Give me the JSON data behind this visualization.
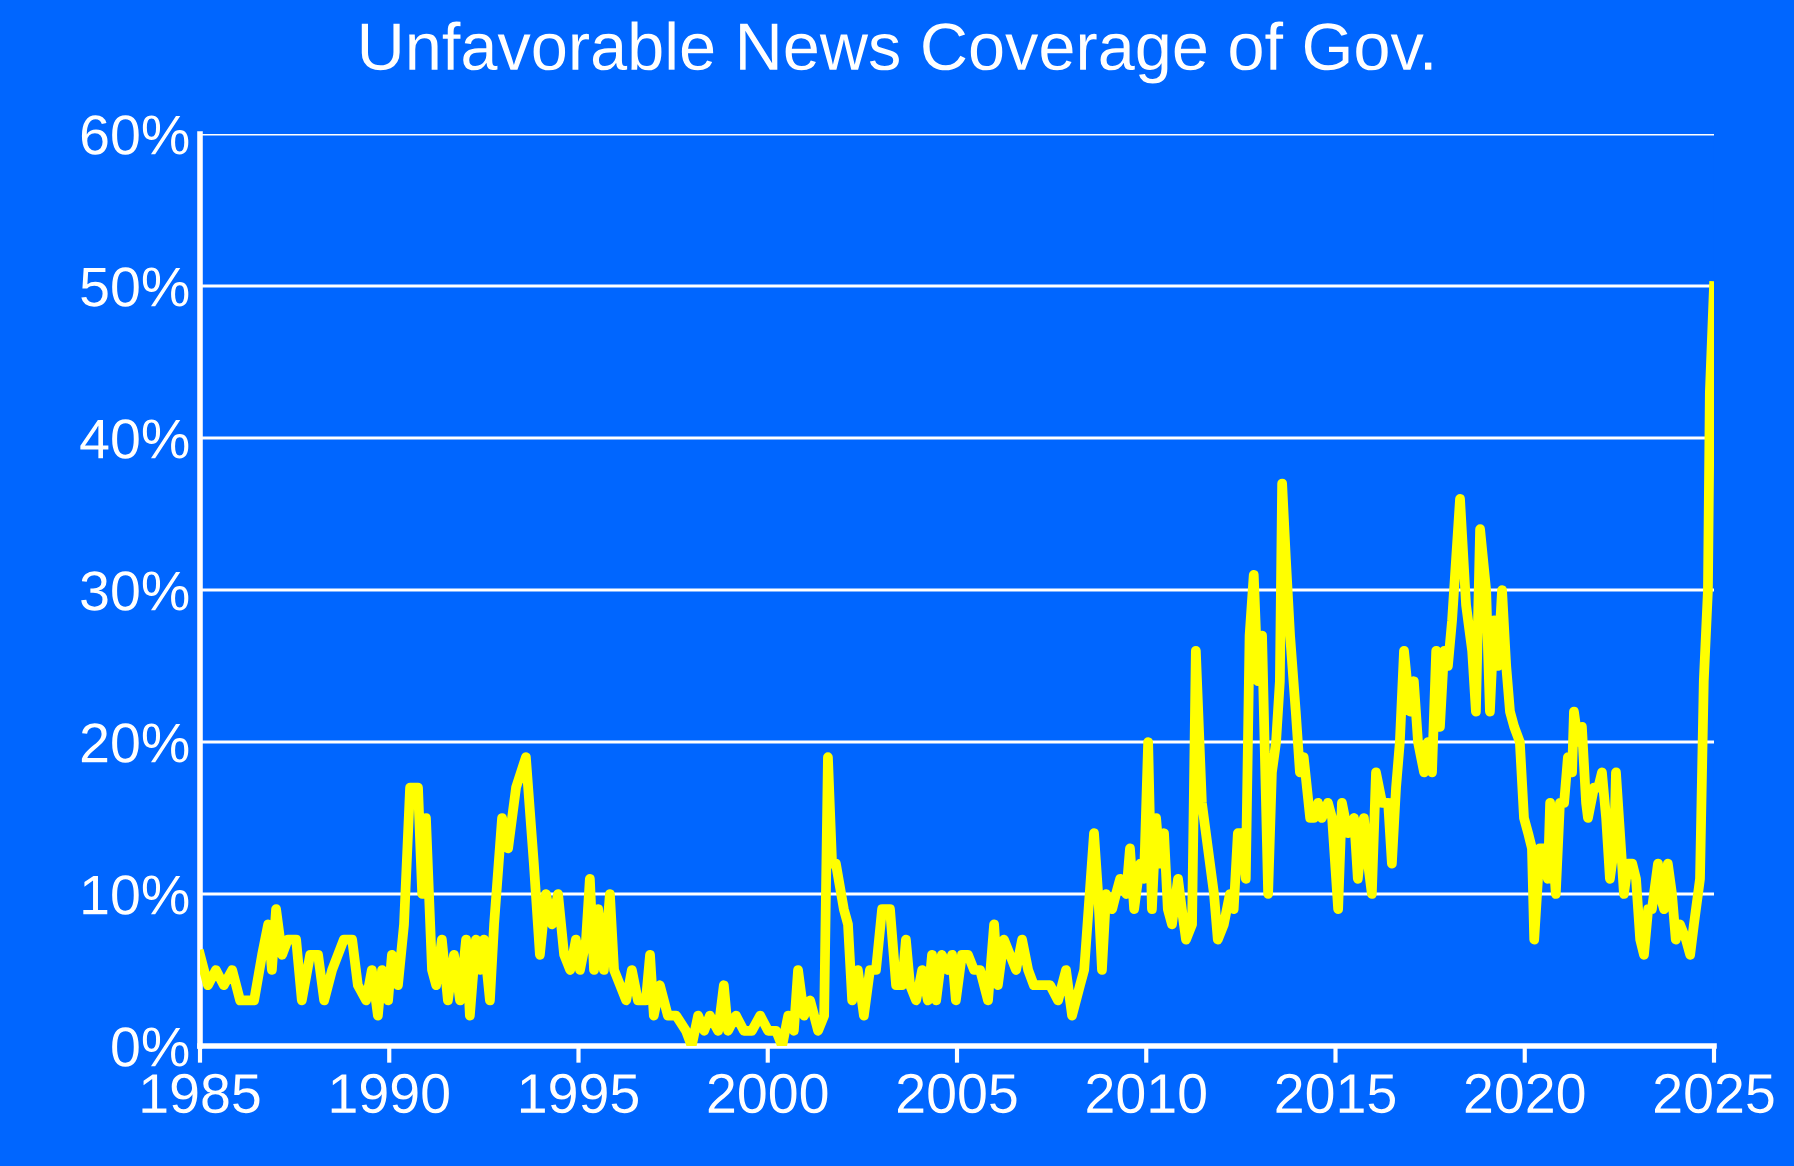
{
  "chart_data": {
    "type": "line",
    "title": "Unfavorable News Coverage of Gov.",
    "xlim": [
      1985,
      2025
    ],
    "xticks": [
      1985,
      1990,
      1995,
      2000,
      2005,
      2010,
      2015,
      2020,
      2025
    ],
    "ylim": [
      0,
      60
    ],
    "yticks": [
      {
        "value": 0,
        "label": "0%"
      },
      {
        "value": 10,
        "label": "10%"
      },
      {
        "value": 20,
        "label": "20%"
      },
      {
        "value": 30,
        "label": "30%"
      },
      {
        "value": 40,
        "label": "40%"
      },
      {
        "value": 50,
        "label": "50%"
      },
      {
        "value": 60,
        "label": "60%"
      }
    ],
    "grid": "y",
    "marker": "none",
    "line_style": "solid",
    "series": [
      {
        "color": "#ffff00",
        "x": [
          1985.0,
          1985.21,
          1985.42,
          1985.63,
          1985.85,
          1986.06,
          1986.43,
          1986.64,
          1986.8,
          1986.9,
          1987.01,
          1987.17,
          1987.32,
          1987.54,
          1987.69,
          1987.91,
          1988.12,
          1988.28,
          1988.49,
          1988.8,
          1989.02,
          1989.17,
          1989.39,
          1989.54,
          1989.7,
          1989.81,
          1989.97,
          1990.07,
          1990.23,
          1990.39,
          1990.55,
          1990.76,
          1990.87,
          1990.97,
          1991.13,
          1991.24,
          1991.39,
          1991.55,
          1991.71,
          1991.87,
          1992.03,
          1992.13,
          1992.29,
          1992.4,
          1992.5,
          1992.66,
          1992.77,
          1992.98,
          1993.14,
          1993.35,
          1993.61,
          1993.82,
          1993.98,
          1994.14,
          1994.3,
          1994.46,
          1994.62,
          1994.78,
          1994.93,
          1995.04,
          1995.2,
          1995.3,
          1995.41,
          1995.52,
          1995.67,
          1995.83,
          1995.94,
          1996.1,
          1996.26,
          1996.41,
          1996.57,
          1996.78,
          1996.89,
          1996.99,
          1997.15,
          1997.36,
          1997.58,
          1997.84,
          1997.99,
          1998.16,
          1998.32,
          1998.47,
          1998.69,
          1998.84,
          1998.95,
          1999.16,
          1999.37,
          1999.58,
          1999.8,
          2000.01,
          2000.22,
          2000.38,
          2000.54,
          2000.69,
          2000.8,
          2000.96,
          2001.12,
          2001.33,
          2001.49,
          2001.59,
          2001.7,
          2001.8,
          2002.01,
          2002.12,
          2002.23,
          2002.38,
          2002.54,
          2002.7,
          2002.86,
          2003.02,
          2003.23,
          2003.39,
          2003.55,
          2003.65,
          2003.76,
          2003.92,
          2004.08,
          2004.23,
          2004.34,
          2004.45,
          2004.6,
          2004.76,
          2004.87,
          2004.97,
          2005.13,
          2005.29,
          2005.45,
          2005.61,
          2005.82,
          2005.98,
          2006.08,
          2006.24,
          2006.4,
          2006.56,
          2006.72,
          2006.88,
          2007.03,
          2007.25,
          2007.46,
          2007.67,
          2007.88,
          2008.04,
          2008.25,
          2008.36,
          2008.62,
          2008.73,
          2008.83,
          2008.94,
          2009.1,
          2009.2,
          2009.31,
          2009.47,
          2009.57,
          2009.68,
          2009.84,
          2009.94,
          2010.05,
          2010.15,
          2010.26,
          2010.36,
          2010.47,
          2010.57,
          2010.68,
          2010.84,
          2010.94,
          2011.05,
          2011.21,
          2011.31,
          2011.47,
          2011.63,
          2011.79,
          2011.89,
          2012.05,
          2012.21,
          2012.31,
          2012.42,
          2012.52,
          2012.63,
          2012.73,
          2012.84,
          2012.95,
          2013.06,
          2013.22,
          2013.32,
          2013.43,
          2013.53,
          2013.59,
          2013.69,
          2013.8,
          2013.95,
          2014.06,
          2014.16,
          2014.33,
          2014.43,
          2014.54,
          2014.64,
          2014.8,
          2014.91,
          2015.07,
          2015.17,
          2015.33,
          2015.49,
          2015.59,
          2015.75,
          2015.86,
          2015.96,
          2016.07,
          2016.23,
          2016.39,
          2016.49,
          2016.6,
          2016.7,
          2016.81,
          2016.97,
          2017.07,
          2017.18,
          2017.34,
          2017.44,
          2017.55,
          2017.66,
          2017.76,
          2017.87,
          2017.97,
          2018.08,
          2018.29,
          2018.45,
          2018.61,
          2018.71,
          2018.82,
          2018.98,
          2019.08,
          2019.19,
          2019.29,
          2019.4,
          2019.51,
          2019.61,
          2019.72,
          2019.87,
          2019.98,
          2020.09,
          2020.19,
          2020.25,
          2020.4,
          2020.51,
          2020.61,
          2020.67,
          2020.82,
          2020.93,
          2021.04,
          2021.14,
          2021.25,
          2021.3,
          2021.41,
          2021.51,
          2021.62,
          2021.67,
          2021.83,
          2021.94,
          2022.04,
          2022.15,
          2022.25,
          2022.36,
          2022.41,
          2022.57,
          2022.62,
          2022.73,
          2022.84,
          2022.94,
          2023.05,
          2023.15,
          2023.26,
          2023.36,
          2023.52,
          2023.57,
          2023.68,
          2023.78,
          2023.89,
          2023.99,
          2024.1,
          2024.26,
          2024.37,
          2024.47,
          2024.63,
          2024.73,
          2024.84,
          2024.89,
          2025.0
        ],
        "values": [
          6,
          4,
          5,
          4,
          5,
          3,
          3,
          6,
          8,
          5,
          9,
          6,
          7,
          7,
          3,
          6,
          6,
          3,
          5,
          7,
          7,
          4,
          3,
          5,
          2,
          5,
          3,
          6,
          4,
          8,
          17,
          17,
          10,
          15,
          5,
          4,
          7,
          3,
          6,
          3,
          7,
          2,
          7,
          5,
          7,
          3,
          8,
          15,
          13,
          17,
          19,
          12,
          6,
          10,
          8,
          10,
          6,
          5,
          7,
          5,
          7,
          11,
          5,
          9,
          5,
          10,
          5,
          4,
          3,
          5,
          3,
          3,
          6,
          2,
          4,
          2,
          2,
          1,
          0,
          2,
          1,
          2,
          1,
          4,
          1,
          2,
          1,
          1,
          2,
          1,
          1,
          0,
          2,
          1,
          5,
          2,
          3,
          1,
          2,
          19,
          12,
          12,
          9,
          8,
          3,
          5,
          2,
          5,
          5,
          9,
          9,
          4,
          4,
          7,
          4,
          3,
          5,
          3,
          6,
          3,
          6,
          5,
          6,
          3,
          6,
          6,
          5,
          5,
          3,
          8,
          4,
          7,
          6,
          5,
          7,
          5,
          4,
          4,
          4,
          3,
          5,
          2,
          4,
          5,
          14,
          10,
          5,
          10,
          9,
          10,
          11,
          10,
          13,
          9,
          12,
          11,
          20,
          9,
          15,
          12,
          14,
          9,
          8,
          11,
          9,
          7,
          8,
          26,
          16,
          13,
          10,
          7,
          8,
          10,
          9,
          14,
          14,
          11,
          27,
          31,
          24,
          27,
          10,
          18,
          20,
          24,
          37,
          32,
          27,
          22,
          18,
          19,
          15,
          15,
          16,
          15,
          16,
          15,
          9,
          16,
          14,
          15,
          11,
          15,
          12,
          10,
          18,
          16,
          16,
          12,
          17,
          20,
          26,
          22,
          24,
          20,
          18,
          20,
          18,
          26,
          21,
          26,
          25,
          28,
          36,
          29,
          26,
          22,
          34,
          30,
          22,
          28,
          25,
          30,
          25,
          22,
          21,
          20,
          15,
          14,
          13,
          7,
          13,
          13,
          11,
          16,
          10,
          16,
          16,
          19,
          18,
          22,
          20,
          21,
          16,
          15,
          17,
          17,
          18,
          15,
          11,
          13,
          18,
          12,
          10,
          12,
          12,
          11,
          7,
          6,
          9,
          9,
          12,
          10,
          9,
          12,
          10,
          7,
          8,
          7,
          6,
          8,
          11,
          24,
          30,
          43,
          50
        ]
      }
    ]
  }
}
